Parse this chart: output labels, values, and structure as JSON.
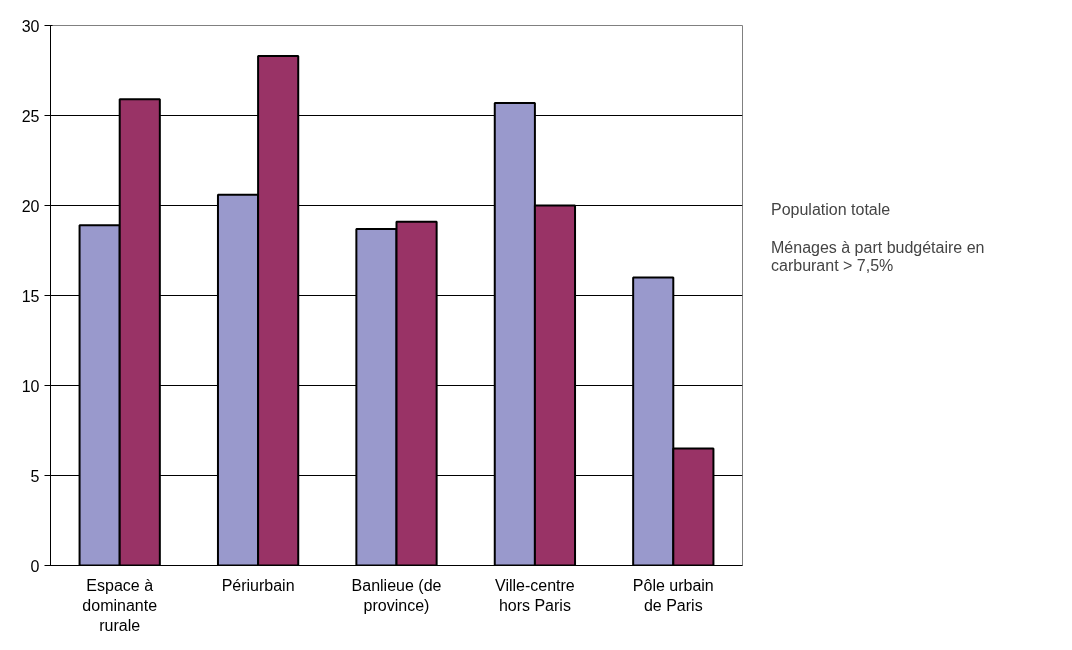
{
  "chart_data": {
    "type": "bar",
    "categories": [
      "Espace à dominante rurale",
      "Périurbain",
      "Banlieue (de province)",
      "Ville-centre hors Paris",
      "Pôle urbain de Paris"
    ],
    "series": [
      {
        "name": "Population totale",
        "color": "#9999cc",
        "values": [
          18.9,
          20.6,
          18.7,
          25.7,
          16.0
        ]
      },
      {
        "name": "Ménages à part budgétaire en carburant > 7,5%",
        "color": "#993366",
        "values": [
          25.9,
          28.3,
          19.1,
          20.0,
          6.5
        ]
      }
    ],
    "ylim": [
      0,
      30
    ],
    "yticks": [
      0,
      5,
      10,
      15,
      20,
      25,
      30
    ],
    "grid": "y",
    "legend": "right"
  }
}
